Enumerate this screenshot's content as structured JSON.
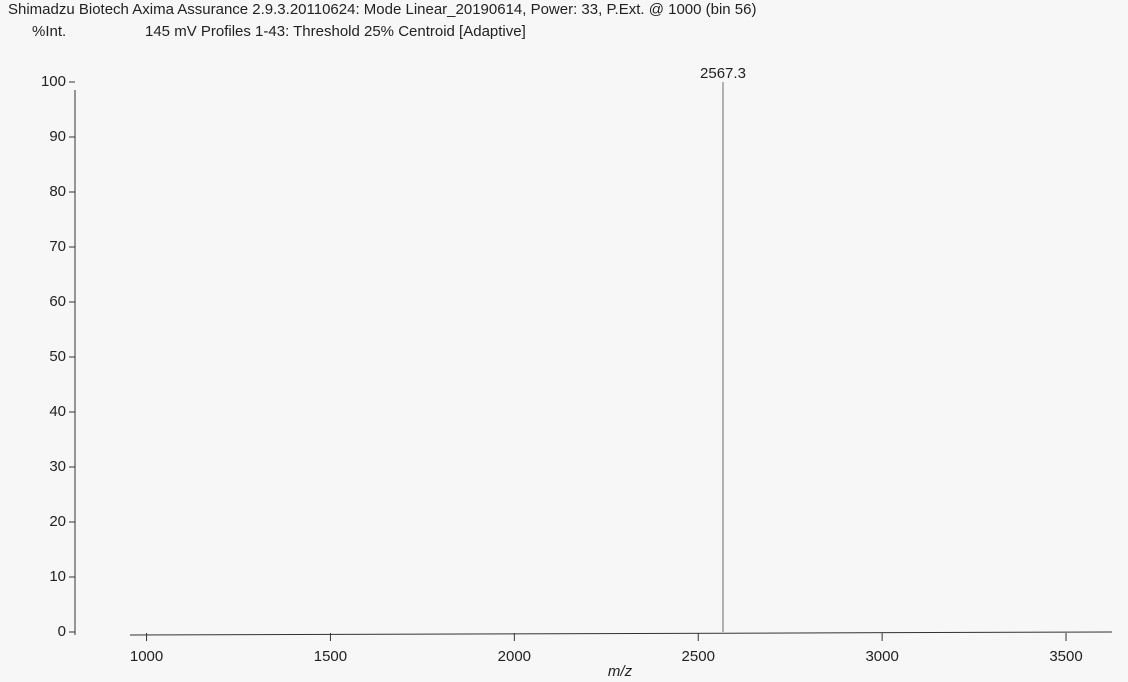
{
  "chart_data": {
    "type": "spectrum",
    "title": "Shimadzu Biotech Axima Assurance 2.9.3.20110624: Mode Linear_20190614, Power: 33, P.Ext. @ 1000 (bin 56)",
    "subtitle": "145 mV  Profiles 1-43: Threshold 25% Centroid [Adaptive]",
    "y_label": "%Int.",
    "x_label": "m/z",
    "x": [
      2567.3
    ],
    "values": [
      100
    ],
    "color": "#9a9a9a",
    "xlim": [
      955,
      3625
    ],
    "xticks": [
      1000,
      1500,
      2000,
      2500,
      3000,
      3500
    ],
    "ylim": [
      0,
      100
    ],
    "yticks": [
      0,
      10,
      20,
      30,
      40,
      50,
      60,
      70,
      80,
      90,
      100
    ]
  }
}
